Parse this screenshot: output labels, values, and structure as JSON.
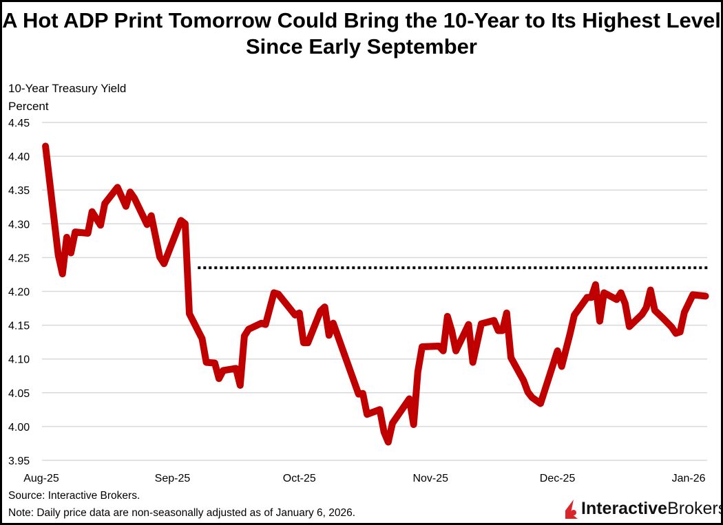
{
  "title": "A Hot ADP Print Tomorrow Could Bring the 10-Year to Its Highest Level Since Early September",
  "source": "Source: Interactive Brokers.",
  "note": "Note: Daily price data are non-seasonally adjusted as of January 6, 2026.",
  "logo": {
    "text_bold": "Interactive",
    "text_regular": "Brokers",
    "color": "#d9262b"
  },
  "chart_data": {
    "type": "line",
    "title": "A Hot ADP Print Tomorrow Could Bring the 10-Year to Its Highest Level Since Early September",
    "ylabel": "10-Year Treasury Yield",
    "yunit": "Percent",
    "ylim": [
      3.95,
      4.45
    ],
    "y_ticks": [
      "3.95",
      "4.00",
      "4.05",
      "4.10",
      "4.15",
      "4.20",
      "4.25",
      "4.30",
      "4.35",
      "4.40",
      "4.45"
    ],
    "x_ticks": [
      {
        "date": "2025-08-01",
        "label": "Aug-25"
      },
      {
        "date": "2025-09-01",
        "label": "Sep-25"
      },
      {
        "date": "2025-10-01",
        "label": "Oct-25"
      },
      {
        "date": "2025-11-01",
        "label": "Nov-25"
      },
      {
        "date": "2025-12-01",
        "label": "Dec-25"
      },
      {
        "date": "2026-01-01",
        "label": "Jan-26"
      }
    ],
    "grid": "horizontal",
    "series_color": "#c00000",
    "reference_line": {
      "value": 4.235,
      "start": "2025-09-07",
      "end": "2026-01-06",
      "style": "dotted",
      "color": "#000000"
    },
    "series": [
      {
        "points": [
          [
            "2025-08-02",
            4.415
          ],
          [
            "2025-08-05",
            4.254
          ],
          [
            "2025-08-06",
            4.226
          ],
          [
            "2025-08-07",
            4.28
          ],
          [
            "2025-08-08",
            4.257
          ],
          [
            "2025-08-09",
            4.288
          ],
          [
            "2025-08-12",
            4.286
          ],
          [
            "2025-08-13",
            4.318
          ],
          [
            "2025-08-15",
            4.298
          ],
          [
            "2025-08-16",
            4.33
          ],
          [
            "2025-08-19",
            4.354
          ],
          [
            "2025-08-21",
            4.326
          ],
          [
            "2025-08-22",
            4.347
          ],
          [
            "2025-08-23",
            4.338
          ],
          [
            "2025-08-26",
            4.299
          ],
          [
            "2025-08-27",
            4.312
          ],
          [
            "2025-08-29",
            4.251
          ],
          [
            "2025-08-30",
            4.241
          ],
          [
            "2025-09-03",
            4.305
          ],
          [
            "2025-09-04",
            4.3
          ],
          [
            "2025-09-05",
            4.167
          ],
          [
            "2025-09-08",
            4.13
          ],
          [
            "2025-09-09",
            4.095
          ],
          [
            "2025-09-11",
            4.094
          ],
          [
            "2025-09-12",
            4.071
          ],
          [
            "2025-09-13",
            4.083
          ],
          [
            "2025-09-16",
            4.086
          ],
          [
            "2025-09-17",
            4.061
          ],
          [
            "2025-09-18",
            4.134
          ],
          [
            "2025-09-19",
            4.144
          ],
          [
            "2025-09-22",
            4.153
          ],
          [
            "2025-09-23",
            4.151
          ],
          [
            "2025-09-25",
            4.198
          ],
          [
            "2025-09-26",
            4.196
          ],
          [
            "2025-09-30",
            4.165
          ],
          [
            "2025-10-01",
            4.168
          ],
          [
            "2025-10-02",
            4.124
          ],
          [
            "2025-10-03",
            4.124
          ],
          [
            "2025-10-06",
            4.171
          ],
          [
            "2025-10-07",
            4.177
          ],
          [
            "2025-10-08",
            4.135
          ],
          [
            "2025-10-09",
            4.153
          ],
          [
            "2025-10-15",
            4.048
          ],
          [
            "2025-10-16",
            4.049
          ],
          [
            "2025-10-17",
            4.018
          ],
          [
            "2025-10-20",
            4.025
          ],
          [
            "2025-10-21",
            3.992
          ],
          [
            "2025-10-22",
            3.977
          ],
          [
            "2025-10-23",
            4.005
          ],
          [
            "2025-10-27",
            4.041
          ],
          [
            "2025-10-28",
            4.003
          ],
          [
            "2025-10-29",
            4.081
          ],
          [
            "2025-10-30",
            4.118
          ],
          [
            "2025-11-03",
            4.119
          ],
          [
            "2025-11-04",
            4.112
          ],
          [
            "2025-11-05",
            4.163
          ],
          [
            "2025-11-06",
            4.142
          ],
          [
            "2025-11-07",
            4.112
          ],
          [
            "2025-11-10",
            4.151
          ],
          [
            "2025-11-11",
            4.095
          ],
          [
            "2025-11-13",
            4.152
          ],
          [
            "2025-11-16",
            4.157
          ],
          [
            "2025-11-17",
            4.142
          ],
          [
            "2025-11-18",
            4.142
          ],
          [
            "2025-11-19",
            4.168
          ],
          [
            "2025-11-20",
            4.102
          ],
          [
            "2025-11-23",
            4.068
          ],
          [
            "2025-11-24",
            4.051
          ],
          [
            "2025-11-25",
            4.043
          ],
          [
            "2025-11-27",
            4.034
          ],
          [
            "2025-12-01",
            4.112
          ],
          [
            "2025-12-02",
            4.089
          ],
          [
            "2025-12-04",
            4.138
          ],
          [
            "2025-12-05",
            4.165
          ],
          [
            "2025-12-08",
            4.191
          ],
          [
            "2025-12-09",
            4.191
          ],
          [
            "2025-12-10",
            4.21
          ],
          [
            "2025-12-11",
            4.156
          ],
          [
            "2025-12-12",
            4.198
          ],
          [
            "2025-12-15",
            4.188
          ],
          [
            "2025-12-16",
            4.198
          ],
          [
            "2025-12-17",
            4.182
          ],
          [
            "2025-12-18",
            4.148
          ],
          [
            "2025-12-21",
            4.166
          ],
          [
            "2025-12-22",
            4.176
          ],
          [
            "2025-12-23",
            4.202
          ],
          [
            "2025-12-24",
            4.172
          ],
          [
            "2025-12-26",
            4.16
          ],
          [
            "2025-12-28",
            4.147
          ],
          [
            "2025-12-29",
            4.138
          ],
          [
            "2025-12-30",
            4.14
          ],
          [
            "2025-12-31",
            4.169
          ],
          [
            "2026-01-02",
            4.195
          ],
          [
            "2026-01-05",
            4.193
          ]
        ]
      }
    ]
  }
}
